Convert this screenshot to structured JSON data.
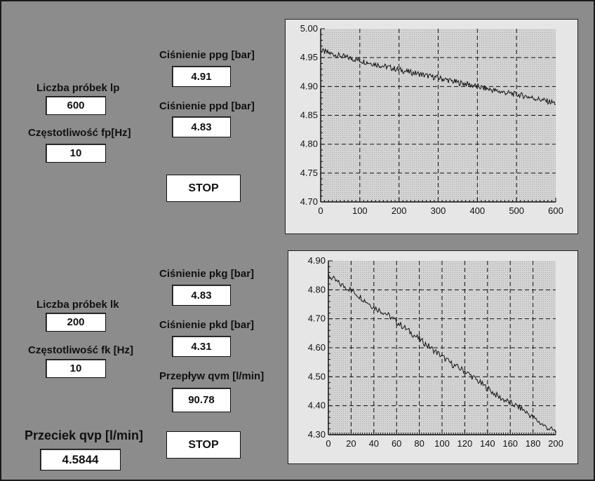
{
  "top": {
    "samples_label": "Liczba próbek lp",
    "samples_value": "600",
    "freq_label": "Częstotliwość fp[Hz]",
    "freq_value": "10",
    "ppg_label": "Ciśnienie ppg [bar]",
    "ppg_value": "4.91",
    "ppd_label": "Ciśnienie ppd [bar]",
    "ppd_value": "4.83",
    "stop_label": "STOP"
  },
  "bottom": {
    "samples_label": "Liczba próbek lk",
    "samples_value": "200",
    "freq_label": "Częstotliwość fk [Hz]",
    "freq_value": "10",
    "pkg_label": "Ciśnienie pkg [bar]",
    "pkg_value": "4.83",
    "pkd_label": "Ciśnienie pkd [bar]",
    "pkd_value": "4.31",
    "flow_label": "Przepływ qvm [l/min]",
    "flow_value": "90.78",
    "leak_label": "Przeciek qvp [l/min]",
    "leak_value": "4.5844",
    "stop_label": "STOP"
  },
  "chart_data": [
    {
      "type": "line",
      "title": "",
      "xlabel": "",
      "ylabel": "",
      "xlim": [
        0,
        600
      ],
      "ylim": [
        4.7,
        5.0
      ],
      "x_ticks": [
        "0",
        "100",
        "200",
        "300",
        "400",
        "500",
        "600"
      ],
      "y_ticks": [
        "4.70",
        "4.75",
        "4.80",
        "4.85",
        "4.90",
        "4.95",
        "5.00"
      ],
      "grid": true,
      "series": [
        {
          "x": [
            0,
            25,
            50,
            75,
            100,
            125,
            150,
            175,
            200,
            225,
            250,
            275,
            300,
            325,
            350,
            375,
            400,
            425,
            450,
            475,
            500,
            525,
            550,
            575,
            600
          ],
          "y": [
            4.962,
            4.957,
            4.953,
            4.949,
            4.945,
            4.941,
            4.937,
            4.933,
            4.929,
            4.925,
            4.922,
            4.918,
            4.915,
            4.911,
            4.907,
            4.904,
            4.9,
            4.896,
            4.892,
            4.889,
            4.886,
            4.883,
            4.879,
            4.875,
            4.871
          ]
        }
      ]
    },
    {
      "type": "line",
      "title": "",
      "xlabel": "",
      "ylabel": "",
      "xlim": [
        0,
        200
      ],
      "ylim": [
        4.3,
        4.9
      ],
      "x_ticks": [
        "0",
        "20",
        "40",
        "60",
        "80",
        "100",
        "120",
        "140",
        "160",
        "180",
        "200"
      ],
      "y_ticks": [
        "4.30",
        "4.40",
        "4.50",
        "4.60",
        "4.70",
        "4.80",
        "4.90"
      ],
      "grid": true,
      "series": [
        {
          "x": [
            0,
            10,
            20,
            30,
            40,
            50,
            60,
            70,
            80,
            90,
            100,
            110,
            120,
            130,
            140,
            150,
            160,
            170,
            180,
            190,
            200
          ],
          "y": [
            4.85,
            4.82,
            4.8,
            4.77,
            4.74,
            4.72,
            4.69,
            4.66,
            4.63,
            4.6,
            4.57,
            4.54,
            4.52,
            4.49,
            4.46,
            4.43,
            4.41,
            4.39,
            4.36,
            4.33,
            4.31
          ]
        }
      ]
    }
  ]
}
